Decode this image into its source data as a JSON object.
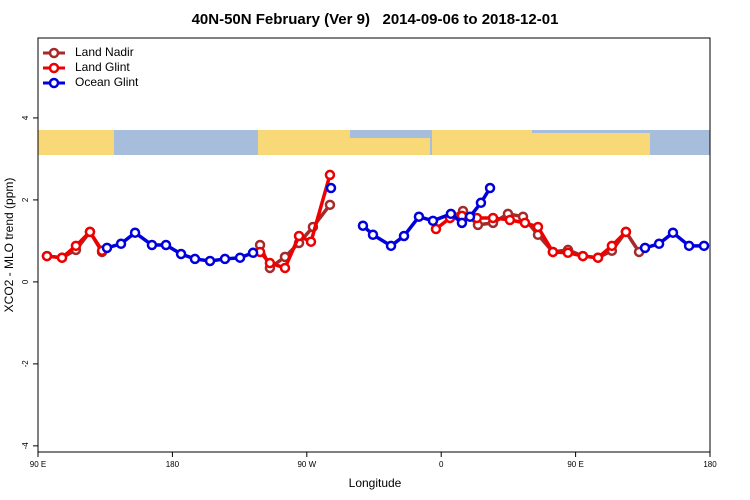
{
  "chart_data": {
    "type": "line",
    "title": "40N-50N February (Ver 9)   2014-09-06 to 2018-12-01",
    "x_label": "Longitude",
    "y_label": "XCO2 - MLO trend (ppm)",
    "xlim": [
      90,
      540
    ],
    "xticks": [
      {
        "value": 90,
        "label": "90 E"
      },
      180,
      {
        "value": 270,
        "label": "90 W"
      },
      {
        "value": 360,
        "label": "0"
      },
      {
        "value": 450,
        "label": "90 E"
      },
      {
        "value": 540,
        "label": "180"
      }
    ],
    "ylim": [
      -4.15,
      5.95
    ],
    "yticks": [
      -4,
      -2,
      0,
      2,
      4
    ],
    "legend": "top-left",
    "series": [
      {
        "name": "Land Nadir",
        "color": "#a52a2a",
        "x": [
          96.0,
          106.1,
          115.4,
          124.8,
          132.9,
          null,
          238.7,
          245.3,
          255.4,
          264.8,
          274.1,
          285.5,
          null,
          365.9,
          374.6,
          384.6,
          394.7,
          404.7,
          414.8,
          424.8,
          434.8,
          444.9,
          454.9,
          465.0,
          474.3,
          483.7,
          492.5
        ],
        "values": [
          0.63,
          0.59,
          0.78,
          1.22,
          0.73,
          null,
          0.9,
          0.34,
          0.61,
          0.95,
          1.34,
          1.88,
          null,
          1.56,
          1.73,
          1.39,
          1.44,
          1.66,
          1.59,
          1.15,
          0.73,
          0.78,
          0.63,
          0.59,
          0.76,
          1.22,
          0.73
        ]
      },
      {
        "name": "Land Glint",
        "color": "#ee0000",
        "x": [
          96.0,
          106.1,
          115.4,
          124.8,
          132.9,
          null,
          238.7,
          245.3,
          255.4,
          264.8,
          272.8,
          285.5,
          null,
          356.5,
          365.9,
          373.9,
          383.9,
          394.7,
          406.0,
          416.1,
          424.8,
          434.8,
          444.9,
          454.9,
          465.0,
          474.3,
          483.7
        ],
        "values": [
          0.63,
          0.59,
          0.88,
          1.22,
          0.76,
          null,
          0.73,
          0.46,
          0.34,
          1.12,
          0.98,
          2.61,
          null,
          1.29,
          1.56,
          1.61,
          1.56,
          1.56,
          1.51,
          1.44,
          1.34,
          0.73,
          0.71,
          0.63,
          0.59,
          0.88,
          1.22
        ]
      },
      {
        "name": "Ocean Glint",
        "color": "#0000dd",
        "x": [
          136.2,
          145.6,
          155.0,
          166.3,
          175.7,
          185.8,
          195.1,
          205.2,
          215.2,
          225.3,
          234.0,
          null,
          286.2,
          null,
          307.6,
          314.3,
          326.4,
          335.1,
          345.1,
          354.5,
          366.5,
          373.9,
          379.3,
          386.6,
          392.7,
          null,
          496.5,
          505.9,
          515.2,
          526.0,
          536.0
        ],
        "values": [
          0.83,
          0.93,
          1.2,
          0.9,
          0.9,
          0.68,
          0.56,
          0.51,
          0.56,
          0.59,
          0.71,
          null,
          2.29,
          null,
          1.37,
          1.15,
          0.88,
          1.12,
          1.59,
          1.49,
          1.66,
          1.44,
          1.59,
          1.93,
          2.29,
          null,
          0.83,
          0.93,
          1.2,
          0.88,
          0.88
        ]
      }
    ]
  }
}
